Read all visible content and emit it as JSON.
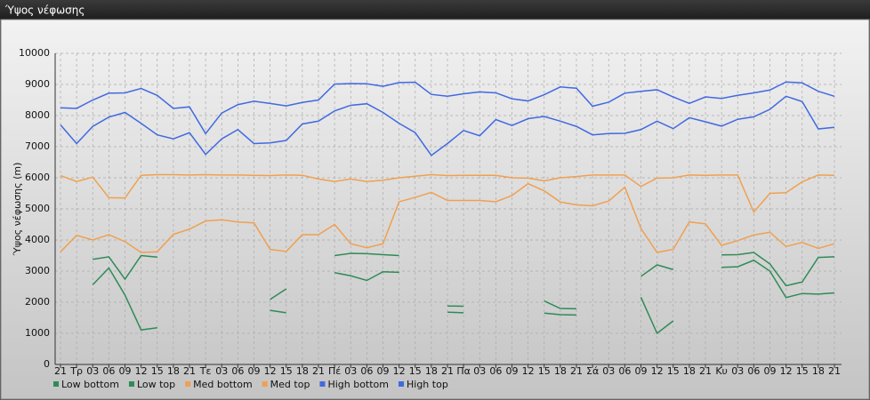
{
  "window_title": "Ύψος νέφωσης",
  "chart_data": {
    "type": "line",
    "ylabel": "Ύψος νέφωσης (m)",
    "categories": [
      "21",
      "Τρ",
      "03",
      "06",
      "09",
      "12",
      "15",
      "18",
      "21",
      "Τε",
      "03",
      "06",
      "09",
      "12",
      "15",
      "18",
      "21",
      "Πέ",
      "03",
      "06",
      "09",
      "12",
      "15",
      "18",
      "21",
      "Πα",
      "03",
      "06",
      "09",
      "12",
      "15",
      "18",
      "21",
      "Σά",
      "03",
      "06",
      "09",
      "12",
      "15",
      "18",
      "21",
      "Κυ",
      "03",
      "06",
      "09",
      "12",
      "15",
      "18",
      "21"
    ],
    "ylim": [
      0,
      10000
    ],
    "yticks": [
      0,
      1000,
      2000,
      3000,
      4000,
      5000,
      6000,
      7000,
      8000,
      9000,
      10000
    ],
    "grid": true,
    "legend": "bottom",
    "series": [
      {
        "name": "Low bottom",
        "color": "#2e8b57",
        "values": [
          null,
          null,
          2560,
          3100,
          2230,
          1110,
          1180,
          null,
          null,
          null,
          null,
          null,
          null,
          1740,
          1660,
          null,
          null,
          2950,
          2850,
          2700,
          2980,
          2960,
          null,
          null,
          1680,
          1660,
          null,
          null,
          null,
          null,
          1650,
          1600,
          1590,
          null,
          null,
          null,
          2160,
          1000,
          1400,
          null,
          null,
          3120,
          3140,
          3350,
          3000,
          2150,
          2280,
          2260,
          2300
        ]
      },
      {
        "name": "Low top",
        "color": "#2e8b57",
        "values": [
          null,
          null,
          3380,
          3460,
          2740,
          3500,
          3450,
          null,
          null,
          null,
          null,
          null,
          null,
          2090,
          2430,
          null,
          null,
          3500,
          3570,
          3560,
          3530,
          3500,
          null,
          null,
          1880,
          1870,
          null,
          null,
          null,
          null,
          2040,
          1800,
          1790,
          null,
          null,
          null,
          2830,
          3200,
          3050,
          null,
          null,
          3520,
          3530,
          3600,
          3230,
          2530,
          2650,
          3440,
          3460
        ]
      },
      {
        "name": "Med bottom",
        "color": "#f0a050",
        "values": [
          3620,
          4150,
          4000,
          4170,
          3950,
          3600,
          3620,
          4180,
          4350,
          4610,
          4650,
          4580,
          4550,
          3700,
          3630,
          4170,
          4170,
          4500,
          3880,
          3750,
          3880,
          5230,
          5370,
          5530,
          5270,
          5270,
          5270,
          5230,
          5430,
          5810,
          5580,
          5220,
          5130,
          5100,
          5250,
          5700,
          4370,
          3600,
          3700,
          4580,
          4520,
          3830,
          3980,
          4160,
          4250,
          3790,
          3920,
          3730,
          3880
        ]
      },
      {
        "name": "Med top",
        "color": "#f0a050",
        "values": [
          6070,
          5880,
          6020,
          5360,
          5350,
          6080,
          6100,
          6100,
          6090,
          6100,
          6090,
          6090,
          6080,
          6070,
          6090,
          6080,
          5960,
          5880,
          5960,
          5880,
          5920,
          6000,
          6050,
          6100,
          6070,
          6080,
          6080,
          6080,
          6000,
          5990,
          5900,
          6000,
          6040,
          6090,
          6090,
          6090,
          5720,
          5990,
          6000,
          6090,
          6080,
          6090,
          6090,
          4900,
          5500,
          5520,
          5870,
          6090,
          6080
        ]
      },
      {
        "name": "High bottom",
        "color": "#4169e1",
        "values": [
          7700,
          7100,
          7650,
          7950,
          8100,
          7750,
          7380,
          7250,
          7450,
          6750,
          7250,
          7550,
          7100,
          7120,
          7200,
          7730,
          7820,
          8150,
          8330,
          8380,
          8100,
          7750,
          7450,
          6720,
          7100,
          7520,
          7350,
          7870,
          7680,
          7900,
          7970,
          7820,
          7650,
          7380,
          7420,
          7430,
          7550,
          7820,
          7580,
          7930,
          7800,
          7660,
          7880,
          7960,
          8200,
          8620,
          8450,
          7570,
          7620
        ]
      },
      {
        "name": "High top",
        "color": "#4169e1",
        "values": [
          8250,
          8230,
          8500,
          8720,
          8730,
          8870,
          8650,
          8230,
          8280,
          7420,
          8080,
          8350,
          8460,
          8390,
          8310,
          8420,
          8500,
          9010,
          9030,
          9020,
          8940,
          9060,
          9070,
          8680,
          8620,
          8700,
          8760,
          8730,
          8540,
          8470,
          8670,
          8920,
          8880,
          8300,
          8430,
          8720,
          8780,
          8830,
          8600,
          8390,
          8600,
          8550,
          8650,
          8730,
          8820,
          9080,
          9050,
          8780,
          8620
        ]
      }
    ]
  }
}
